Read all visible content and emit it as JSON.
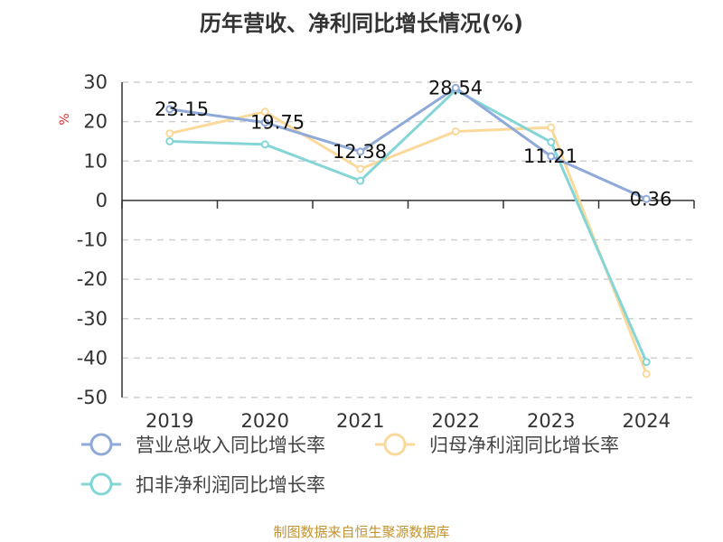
{
  "chart_data": {
    "type": "line",
    "title": "历年营收、净利同比增长情况(%)",
    "ylabel": "%",
    "categories": [
      "2019",
      "2020",
      "2021",
      "2022",
      "2023",
      "2024"
    ],
    "ylim": [
      -50,
      30
    ],
    "yticks": [
      30,
      20,
      10,
      0,
      -10,
      -20,
      -30,
      -40,
      -50
    ],
    "grid": true,
    "legend_position": "bottom",
    "series": [
      {
        "name": "营业总收入同比增长率",
        "color": "#8fa9d8",
        "values": [
          23.15,
          19.75,
          12.38,
          28.54,
          11.21,
          0.36
        ],
        "labels": [
          "23.15",
          "19.75",
          "12.38",
          "28.54",
          "11.21",
          "0.36"
        ]
      },
      {
        "name": "归母净利润同比增长率",
        "color": "#fbd99b",
        "values": [
          17.0,
          22.5,
          8.0,
          17.5,
          18.5,
          -44.0
        ]
      },
      {
        "name": "扣非净利润同比增长率",
        "color": "#84d5d6",
        "values": [
          15.0,
          14.2,
          5.0,
          28.0,
          14.8,
          -41.0
        ]
      }
    ]
  },
  "footer": "制图数据来自恒生聚源数据库"
}
